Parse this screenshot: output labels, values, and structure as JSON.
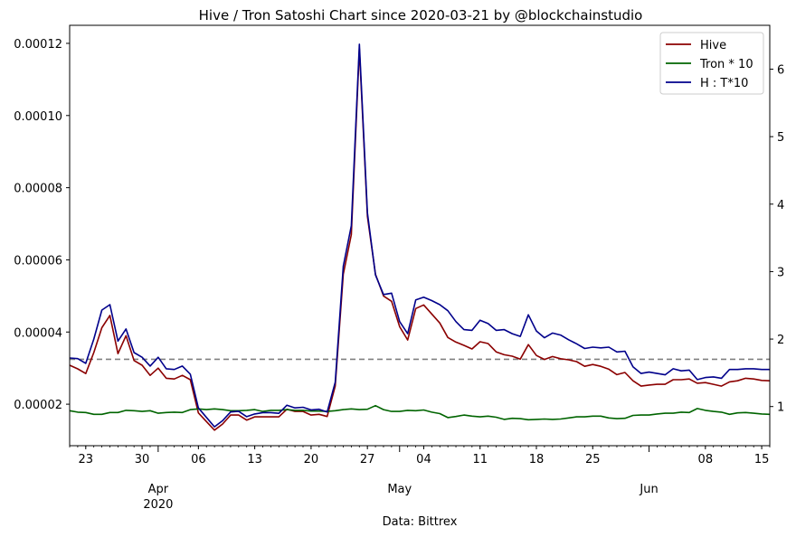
{
  "chart_data": {
    "type": "line",
    "title": "Hive / Tron Satoshi Chart since 2020-03-21 by @blockchainstudio",
    "xlabel": "Data: Bittrex",
    "x_start": "2020-03-21",
    "x_end": "2020-06-16",
    "xlim": [
      "2020-03-21",
      "2020-06-16"
    ],
    "ylim_left": [
      8.5e-06,
      0.000125
    ],
    "ylim_right": [
      0.42,
      6.65
    ],
    "left_ticks": [
      "0.00002",
      "0.00004",
      "0.00006",
      "0.00008",
      "0.00010",
      "0.00012"
    ],
    "right_ticks": [
      "1",
      "2",
      "3",
      "4",
      "5",
      "6"
    ],
    "x_day_ticks": [
      {
        "label": "23",
        "date": "2020-03-23"
      },
      {
        "label": "30",
        "date": "2020-03-30"
      },
      {
        "label": "06",
        "date": "2020-04-06"
      },
      {
        "label": "13",
        "date": "2020-04-13"
      },
      {
        "label": "20",
        "date": "2020-04-20"
      },
      {
        "label": "27",
        "date": "2020-04-27"
      },
      {
        "label": "04",
        "date": "2020-05-04"
      },
      {
        "label": "11",
        "date": "2020-05-11"
      },
      {
        "label": "18",
        "date": "2020-05-18"
      },
      {
        "label": "25",
        "date": "2020-05-25"
      },
      {
        "label": "08",
        "date": "2020-06-08"
      },
      {
        "label": "15",
        "date": "2020-06-15"
      }
    ],
    "x_month_ticks": [
      {
        "label": "Apr",
        "sub": "2020",
        "date": "2020-04-01"
      },
      {
        "label": "May",
        "sub": "",
        "date": "2020-05-01"
      },
      {
        "label": "Jun",
        "sub": "",
        "date": "2020-06-01"
      }
    ],
    "reference_line": {
      "axis": "right",
      "value": 1.7,
      "style": "dashed",
      "color": "#808080"
    },
    "legend": {
      "position": "top-right"
    },
    "series": [
      {
        "name": "Hive",
        "color": "#8b0000",
        "axis": "left",
        "values": [
          3.08e-05,
          2.98e-05,
          2.85e-05,
          3.43e-05,
          4.12e-05,
          4.46e-05,
          3.4e-05,
          3.9e-05,
          3.21e-05,
          3.08e-05,
          2.8e-05,
          3e-05,
          2.72e-05,
          2.7e-05,
          2.8e-05,
          2.68e-05,
          1.76e-05,
          1.52e-05,
          1.28e-05,
          1.45e-05,
          1.7e-05,
          1.7e-05,
          1.56e-05,
          1.65e-05,
          1.65e-05,
          1.65e-05,
          1.65e-05,
          1.86e-05,
          1.8e-05,
          1.8e-05,
          1.7e-05,
          1.72e-05,
          1.66e-05,
          2.5e-05,
          5.6e-05,
          6.7e-05,
          0.0001185,
          7.2e-05,
          5.6e-05,
          5e-05,
          4.85e-05,
          4.15e-05,
          3.78e-05,
          4.65e-05,
          4.75e-05,
          4.5e-05,
          4.25e-05,
          3.85e-05,
          3.72e-05,
          3.63e-05,
          3.53e-05,
          3.73e-05,
          3.68e-05,
          3.45e-05,
          3.37e-05,
          3.33e-05,
          3.25e-05,
          3.65e-05,
          3.35e-05,
          3.24e-05,
          3.32e-05,
          3.26e-05,
          3.23e-05,
          3.18e-05,
          3.05e-05,
          3.1e-05,
          3.05e-05,
          2.97e-05,
          2.82e-05,
          2.88e-05,
          2.65e-05,
          2.5e-05,
          2.53e-05,
          2.55e-05,
          2.55e-05,
          2.68e-05,
          2.68e-05,
          2.7e-05,
          2.58e-05,
          2.6e-05,
          2.55e-05,
          2.5e-05,
          2.62e-05,
          2.65e-05,
          2.72e-05,
          2.7e-05,
          2.66e-05,
          2.65e-05
        ]
      },
      {
        "name": "Tron * 10",
        "color": "#006400",
        "axis": "left",
        "values": [
          1.82e-05,
          1.78e-05,
          1.77e-05,
          1.72e-05,
          1.72e-05,
          1.77e-05,
          1.77e-05,
          1.83e-05,
          1.82e-05,
          1.8e-05,
          1.82e-05,
          1.75e-05,
          1.77e-05,
          1.78e-05,
          1.77e-05,
          1.85e-05,
          1.87e-05,
          1.85e-05,
          1.87e-05,
          1.85e-05,
          1.82e-05,
          1.82e-05,
          1.83e-05,
          1.85e-05,
          1.8e-05,
          1.83e-05,
          1.83e-05,
          1.85e-05,
          1.83e-05,
          1.83e-05,
          1.81e-05,
          1.81e-05,
          1.8e-05,
          1.82e-05,
          1.85e-05,
          1.87e-05,
          1.85e-05,
          1.86e-05,
          1.96e-05,
          1.85e-05,
          1.8e-05,
          1.8e-05,
          1.83e-05,
          1.82e-05,
          1.84e-05,
          1.78e-05,
          1.74e-05,
          1.63e-05,
          1.66e-05,
          1.7e-05,
          1.67e-05,
          1.65e-05,
          1.67e-05,
          1.64e-05,
          1.58e-05,
          1.61e-05,
          1.6e-05,
          1.57e-05,
          1.58e-05,
          1.59e-05,
          1.58e-05,
          1.59e-05,
          1.62e-05,
          1.65e-05,
          1.65e-05,
          1.67e-05,
          1.67e-05,
          1.62e-05,
          1.6e-05,
          1.61e-05,
          1.69e-05,
          1.7e-05,
          1.7e-05,
          1.73e-05,
          1.75e-05,
          1.75e-05,
          1.78e-05,
          1.77e-05,
          1.88e-05,
          1.83e-05,
          1.8e-05,
          1.78e-05,
          1.72e-05,
          1.76e-05,
          1.77e-05,
          1.75e-05,
          1.73e-05,
          1.72e-05
        ]
      },
      {
        "name": "H : T*10",
        "color": "#00008b",
        "axis": "right",
        "values": [
          1.72,
          1.71,
          1.64,
          2.0,
          2.43,
          2.51,
          1.97,
          2.15,
          1.8,
          1.73,
          1.6,
          1.73,
          1.56,
          1.55,
          1.6,
          1.48,
          0.98,
          0.84,
          0.7,
          0.79,
          0.92,
          0.93,
          0.85,
          0.89,
          0.91,
          0.91,
          0.9,
          1.02,
          0.98,
          0.99,
          0.95,
          0.96,
          0.92,
          1.36,
          3.08,
          3.68,
          6.37,
          3.87,
          2.95,
          2.66,
          2.68,
          2.26,
          2.08,
          2.58,
          2.62,
          2.57,
          2.51,
          2.42,
          2.26,
          2.14,
          2.13,
          2.28,
          2.23,
          2.13,
          2.14,
          2.08,
          2.04,
          2.36,
          2.12,
          2.02,
          2.09,
          2.06,
          1.99,
          1.93,
          1.86,
          1.88,
          1.87,
          1.88,
          1.81,
          1.82,
          1.59,
          1.49,
          1.51,
          1.49,
          1.47,
          1.56,
          1.53,
          1.54,
          1.4,
          1.43,
          1.44,
          1.42,
          1.55,
          1.55,
          1.56,
          1.56,
          1.55,
          1.55
        ]
      }
    ]
  }
}
